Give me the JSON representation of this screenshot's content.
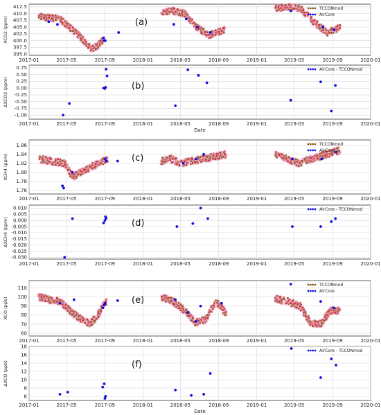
{
  "colors": {
    "tccon": "#c0392b",
    "tccon_dark": "#8b5a1b",
    "aircore": "#1010e0",
    "halo": "#f4b8df",
    "grid": "#d6d6d6"
  },
  "date_ticks": [
    "2017-01",
    "2017-05",
    "2017-09",
    "2018-01",
    "2018-05",
    "2018-09",
    "2019-01",
    "2019-05",
    "2019-09",
    "2020-01"
  ],
  "x_range": [
    "2017-01",
    "2020-01"
  ],
  "chart_data": [
    {
      "type": "scatter",
      "panel_label": "(a)",
      "ylabel": "XCO2 (ppm)",
      "ylim": [
        394.5,
        413.5
      ],
      "yticks": [
        395.0,
        397.5,
        400.0,
        402.5,
        405.0,
        407.5,
        410.0,
        412.5
      ],
      "ytick_labels": [
        "395.0",
        "397.5",
        "400.0",
        "402.5",
        "405.0",
        "407.5",
        "410.0",
        "412.5"
      ],
      "legend": [
        "TCCONmod",
        "AirCore"
      ],
      "xlabel": "",
      "tccon_segments": [
        {
          "start": "2017-02-01",
          "end": "2017-04-10",
          "y": [
            409,
            408.5,
            408
          ]
        },
        {
          "start": "2017-04-10",
          "end": "2017-07-20",
          "y": [
            408,
            403,
            397
          ]
        },
        {
          "start": "2017-07-20",
          "end": "2017-08-25",
          "y": [
            397,
            398,
            400
          ]
        },
        {
          "start": "2018-03-01",
          "end": "2018-05-15",
          "y": [
            410.5,
            411,
            410
          ]
        },
        {
          "start": "2018-05-15",
          "end": "2018-08-01",
          "y": [
            410,
            405,
            402
          ]
        },
        {
          "start": "2018-08-01",
          "end": "2018-09-20",
          "y": [
            402,
            403,
            404
          ]
        },
        {
          "start": "2019-03-01",
          "end": "2019-05-20",
          "y": [
            412,
            412.5,
            412
          ]
        },
        {
          "start": "2019-05-20",
          "end": "2019-08-15",
          "y": [
            412,
            407,
            403
          ]
        },
        {
          "start": "2019-08-15",
          "end": "2019-09-25",
          "y": [
            403,
            404,
            405
          ]
        }
      ],
      "aircore": [
        {
          "x": "2017-03-05",
          "y": 407
        },
        {
          "x": "2017-04-02",
          "y": 406
        },
        {
          "x": "2017-08-28",
          "y": 401
        },
        {
          "x": "2017-08-30",
          "y": 400
        },
        {
          "x": "2017-09-02",
          "y": 400
        },
        {
          "x": "2017-10-15",
          "y": 403
        },
        {
          "x": "2018-04-10",
          "y": 406
        },
        {
          "x": "2018-05-20",
          "y": 408
        },
        {
          "x": "2018-06-25",
          "y": 405
        },
        {
          "x": "2018-08-05",
          "y": 403
        },
        {
          "x": "2019-04-20",
          "y": 411
        },
        {
          "x": "2019-08-01",
          "y": 405
        },
        {
          "x": "2019-09-05",
          "y": 404
        }
      ]
    },
    {
      "type": "scatter",
      "panel_label": "(b)",
      "ylabel": "ΔXCO2 (ppm)",
      "ylim": [
        -1.15,
        0.85
      ],
      "yticks": [
        -1.0,
        -0.75,
        -0.5,
        -0.25,
        0.0,
        0.25,
        0.5,
        0.75
      ],
      "ytick_labels": [
        "-1.00",
        "-0.75",
        "-0.50",
        "-0.25",
        "0.00",
        "0.25",
        "0.50",
        "0.75"
      ],
      "legend": [
        "AirCore - TCCONmod"
      ],
      "xlabel": "Date",
      "points": [
        {
          "x": "2017-04-20",
          "y": -1.0
        },
        {
          "x": "2017-05-10",
          "y": -0.57
        },
        {
          "x": "2017-08-28",
          "y": 0.0
        },
        {
          "x": "2017-09-01",
          "y": -0.02
        },
        {
          "x": "2017-09-03",
          "y": 0.03
        },
        {
          "x": "2017-09-05",
          "y": 0.7
        },
        {
          "x": "2017-09-08",
          "y": 0.45
        },
        {
          "x": "2018-04-15",
          "y": -0.65
        },
        {
          "x": "2018-05-25",
          "y": 0.68
        },
        {
          "x": "2018-06-28",
          "y": 0.47
        },
        {
          "x": "2018-07-25",
          "y": 0.2
        },
        {
          "x": "2019-04-20",
          "y": -0.45
        },
        {
          "x": "2019-07-25",
          "y": 0.23
        },
        {
          "x": "2019-08-28",
          "y": -0.85
        },
        {
          "x": "2019-09-10",
          "y": 0.1
        }
      ]
    },
    {
      "type": "scatter",
      "panel_label": "(c)",
      "ylabel": "XCH4 (ppm)",
      "ylim": [
        1.752,
        1.872
      ],
      "yticks": [
        1.76,
        1.78,
        1.8,
        1.82,
        1.84,
        1.86
      ],
      "ytick_labels": [
        "1.76",
        "1.78",
        "1.80",
        "1.82",
        "1.84",
        "1.86"
      ],
      "legend": [
        "TCCONmod",
        "AirCore"
      ],
      "xlabel": "",
      "tccon_segments": [
        {
          "start": "2017-02-01",
          "end": "2017-04-25",
          "y": [
            1.83,
            1.825,
            1.82
          ]
        },
        {
          "start": "2017-04-25",
          "end": "2017-06-15",
          "y": [
            1.82,
            1.79,
            1.8
          ]
        },
        {
          "start": "2017-06-15",
          "end": "2017-09-10",
          "y": [
            1.8,
            1.815,
            1.83
          ]
        },
        {
          "start": "2018-03-01",
          "end": "2018-05-01",
          "y": [
            1.825,
            1.83,
            1.82
          ]
        },
        {
          "start": "2018-05-01",
          "end": "2018-09-25",
          "y": [
            1.82,
            1.83,
            1.84
          ]
        },
        {
          "start": "2019-03-01",
          "end": "2019-05-15",
          "y": [
            1.84,
            1.83,
            1.82
          ]
        },
        {
          "start": "2019-05-15",
          "end": "2019-09-25",
          "y": [
            1.82,
            1.835,
            1.85
          ]
        }
      ],
      "aircore": [
        {
          "x": "2017-04-18",
          "y": 1.77
        },
        {
          "x": "2017-04-22",
          "y": 1.765
        },
        {
          "x": "2017-05-20",
          "y": 1.8
        },
        {
          "x": "2017-09-02",
          "y": 1.83
        },
        {
          "x": "2017-09-05",
          "y": 1.825
        },
        {
          "x": "2017-10-12",
          "y": 1.825
        },
        {
          "x": "2018-05-10",
          "y": 1.82
        },
        {
          "x": "2018-06-20",
          "y": 1.83
        },
        {
          "x": "2018-07-15",
          "y": 1.84
        },
        {
          "x": "2019-04-25",
          "y": 1.83
        },
        {
          "x": "2019-07-28",
          "y": 1.83
        },
        {
          "x": "2019-09-12",
          "y": 1.845
        }
      ]
    },
    {
      "type": "scatter",
      "panel_label": "(d)",
      "ylabel": "ΔXCH4 (ppm)",
      "ylim": [
        -0.0315,
        0.0125
      ],
      "yticks": [
        -0.03,
        -0.025,
        -0.02,
        -0.015,
        -0.01,
        -0.005,
        0.0,
        0.005,
        0.01
      ],
      "ytick_labels": [
        "-0.030",
        "-0.025",
        "-0.020",
        "-0.015",
        "-0.010",
        "-0.005",
        "0.000",
        "0.005",
        "0.010"
      ],
      "legend": [
        "AirCore - TCCONmod"
      ],
      "xlabel": "",
      "points": [
        {
          "x": "2017-04-25",
          "y": -0.03
        },
        {
          "x": "2017-05-20",
          "y": 0.0015
        },
        {
          "x": "2017-08-28",
          "y": -0.002
        },
        {
          "x": "2017-09-01",
          "y": 0.0
        },
        {
          "x": "2017-09-03",
          "y": 0.003
        },
        {
          "x": "2017-09-05",
          "y": 0.0018
        },
        {
          "x": "2018-04-20",
          "y": -0.005
        },
        {
          "x": "2018-06-10",
          "y": -0.0025
        },
        {
          "x": "2018-07-05",
          "y": 0.01
        },
        {
          "x": "2018-07-28",
          "y": 0.0015
        },
        {
          "x": "2019-04-25",
          "y": -0.005
        },
        {
          "x": "2019-07-25",
          "y": -0.005
        },
        {
          "x": "2019-08-28",
          "y": -0.001
        },
        {
          "x": "2019-09-10",
          "y": 0.0015
        }
      ]
    },
    {
      "type": "scatter",
      "panel_label": "(e)",
      "ylabel": "XCO (ppb)",
      "ylim": [
        57,
        118
      ],
      "yticks": [
        60,
        70,
        80,
        90,
        100,
        110
      ],
      "ytick_labels": [
        "60",
        "70",
        "80",
        "90",
        "100",
        "110"
      ],
      "legend": [
        "TCCONmod",
        "AirCore"
      ],
      "xlabel": "",
      "tccon_segments": [
        {
          "start": "2017-02-01",
          "end": "2017-04-10",
          "y": [
            100,
            97,
            95
          ]
        },
        {
          "start": "2017-04-10",
          "end": "2017-07-15",
          "y": [
            95,
            80,
            70
          ]
        },
        {
          "start": "2017-07-15",
          "end": "2017-09-05",
          "y": [
            70,
            80,
            95
          ]
        },
        {
          "start": "2018-03-01",
          "end": "2018-05-15",
          "y": [
            100,
            95,
            85
          ]
        },
        {
          "start": "2018-05-15",
          "end": "2018-07-20",
          "y": [
            85,
            72,
            75
          ]
        },
        {
          "start": "2018-07-20",
          "end": "2018-09-25",
          "y": [
            75,
            95,
            82
          ]
        },
        {
          "start": "2019-03-01",
          "end": "2019-05-20",
          "y": [
            98,
            95,
            90
          ]
        },
        {
          "start": "2019-05-20",
          "end": "2019-07-25",
          "y": [
            90,
            72,
            70
          ]
        },
        {
          "start": "2019-07-25",
          "end": "2019-09-25",
          "y": [
            70,
            85,
            85
          ]
        }
      ],
      "aircore": [
        {
          "x": "2017-04-10",
          "y": 93
        },
        {
          "x": "2017-05-25",
          "y": 97
        },
        {
          "x": "2017-08-25",
          "y": 88
        },
        {
          "x": "2017-08-30",
          "y": 91
        },
        {
          "x": "2017-09-02",
          "y": 93
        },
        {
          "x": "2017-10-12",
          "y": 96
        },
        {
          "x": "2018-04-15",
          "y": 97
        },
        {
          "x": "2018-05-25",
          "y": 83
        },
        {
          "x": "2018-06-20",
          "y": 73
        },
        {
          "x": "2018-07-05",
          "y": 90
        },
        {
          "x": "2018-09-10",
          "y": 93
        },
        {
          "x": "2019-04-20",
          "y": 114
        },
        {
          "x": "2019-07-25",
          "y": 95
        },
        {
          "x": "2019-09-05",
          "y": 88
        }
      ]
    },
    {
      "type": "scatter",
      "panel_label": "(f)",
      "ylabel": "ΔXCO (ppb)",
      "ylim": [
        5,
        18
      ],
      "yticks": [
        6,
        8,
        10,
        12,
        14,
        16,
        18
      ],
      "ytick_labels": [
        "6",
        "8",
        "10",
        "12",
        "14",
        "16",
        "18"
      ],
      "legend": [
        "AirCore - TCCONmod"
      ],
      "xlabel": "Date",
      "points": [
        {
          "x": "2017-04-10",
          "y": 6.5
        },
        {
          "x": "2017-05-05",
          "y": 7.0
        },
        {
          "x": "2017-08-25",
          "y": 8.2
        },
        {
          "x": "2017-08-30",
          "y": 9.0
        },
        {
          "x": "2017-09-01",
          "y": 5.5
        },
        {
          "x": "2017-09-03",
          "y": 6.0
        },
        {
          "x": "2018-04-15",
          "y": 7.5
        },
        {
          "x": "2018-06-05",
          "y": 6.2
        },
        {
          "x": "2018-07-15",
          "y": 6.5
        },
        {
          "x": "2018-08-05",
          "y": 11.5
        },
        {
          "x": "2019-04-22",
          "y": 17.5
        },
        {
          "x": "2019-07-25",
          "y": 10.5
        },
        {
          "x": "2019-08-28",
          "y": 15.0
        },
        {
          "x": "2019-09-12",
          "y": 13.5
        }
      ]
    }
  ]
}
